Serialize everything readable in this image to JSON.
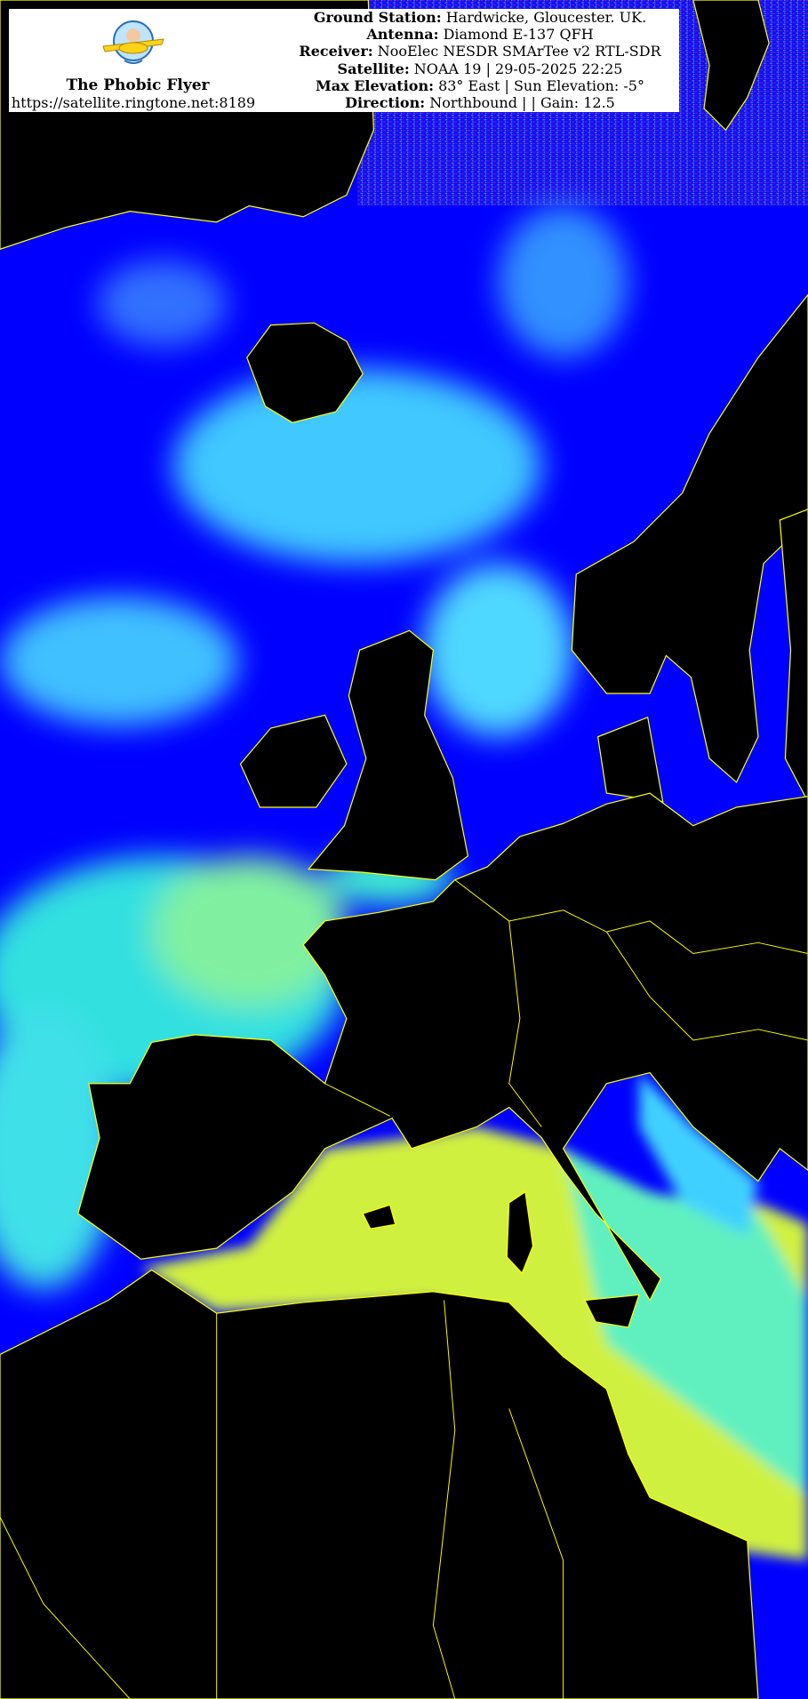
{
  "brand": {
    "name": "The Phobic Flyer",
    "url": "https://satellite.ringtone.net:8189"
  },
  "info": [
    {
      "label": "Ground Station:",
      "value": " Hardwicke, Gloucester. UK."
    },
    {
      "label": "Antenna:",
      "value": " Diamond E-137 QFH"
    },
    {
      "label": "Receiver:",
      "value": " NooElec NESDR SMArTee v2 RTL-SDR"
    },
    {
      "label": "Satellite:",
      "value": " NOAA 19 | 29-05-2025 22:25"
    },
    {
      "label": "Max Elevation:",
      "value": " 83° East | Sun Elevation: -5°"
    },
    {
      "label": "Direction:",
      "value": " Northbound | | Gain: 12.5"
    }
  ],
  "colors": {
    "ocean": "#0000ff",
    "cloud": "#3fd0ff",
    "warm_sea": "#d8f040",
    "land": "#000000",
    "coastline": "#ffff00"
  }
}
